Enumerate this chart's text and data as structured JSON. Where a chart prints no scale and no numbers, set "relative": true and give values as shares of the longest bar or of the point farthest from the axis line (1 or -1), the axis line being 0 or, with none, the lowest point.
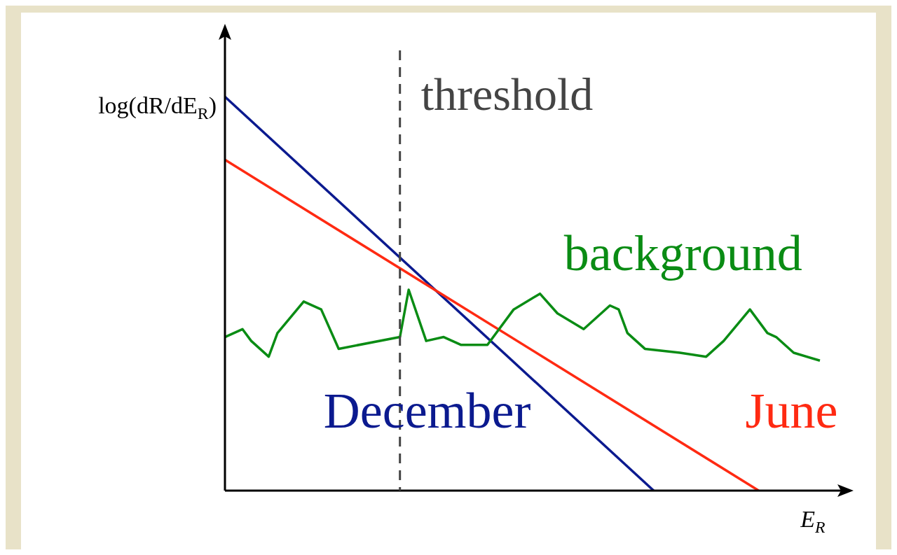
{
  "chart_data": {
    "type": "line",
    "relative": true,
    "ylabel": "log(dR/dE$_{R}$)",
    "xlabel": "E$_{R}$",
    "annotations": [
      "threshold"
    ],
    "grid": false,
    "legend": false,
    "marker": "none",
    "line_style": "solid",
    "categories": [
      null,
      null,
      null,
      null,
      null,
      null,
      null,
      null,
      null,
      null,
      null,
      null,
      null,
      null,
      null,
      null,
      null,
      null,
      null,
      null,
      null,
      null,
      null,
      null,
      null,
      null,
      null,
      null,
      null,
      null,
      null,
      null,
      null,
      null,
      null,
      null,
      null,
      null,
      null,
      null,
      null,
      null,
      null,
      null,
      null,
      null,
      null,
      null,
      null,
      null,
      null,
      null,
      null,
      null,
      null,
      null,
      null,
      null,
      null,
      null,
      null,
      null,
      null,
      null,
      null,
      null,
      null,
      null,
      null
    ],
    "series": [
      {
        "name": "December",
        "color": "#0b1a8f",
        "values": [
          1,
          null,
          null,
          null,
          null,
          null,
          null,
          null,
          null,
          null,
          null,
          null,
          null,
          null,
          null,
          null,
          null,
          null,
          null,
          null,
          null,
          null,
          null,
          null,
          null,
          null,
          null,
          null,
          null,
          null,
          null,
          null,
          null,
          null,
          null,
          null,
          null,
          null,
          null,
          null,
          null,
          null,
          null,
          null,
          null,
          null,
          null,
          null,
          null,
          0,
          null,
          null,
          null,
          null,
          null,
          null,
          null,
          null,
          null,
          null,
          null,
          null,
          null,
          null,
          null,
          null,
          null,
          null,
          null
        ]
      },
      {
        "name": "June",
        "color": "#ff2a12",
        "values": [
          0.84,
          null,
          null,
          null,
          null,
          null,
          null,
          null,
          null,
          null,
          null,
          null,
          null,
          null,
          null,
          null,
          null,
          null,
          null,
          null,
          null,
          null,
          null,
          null,
          null,
          null,
          null,
          null,
          null,
          null,
          null,
          null,
          null,
          null,
          null,
          null,
          null,
          null,
          null,
          null,
          null,
          null,
          null,
          null,
          null,
          null,
          null,
          null,
          null,
          null,
          null,
          null,
          null,
          null,
          null,
          null,
          null,
          null,
          null,
          null,
          null,
          0,
          null,
          null,
          null,
          null,
          null,
          null,
          null
        ]
      },
      {
        "name": "background",
        "color": "#0a8c14",
        "values": [
          0.39,
          null,
          0.41,
          0.38,
          null,
          0.34,
          0.4,
          null,
          null,
          0.48,
          null,
          0.46,
          null,
          0.36,
          null,
          null,
          null,
          null,
          null,
          null,
          0.39,
          0.51,
          null,
          0.38,
          null,
          0.39,
          null,
          0.37,
          null,
          null,
          0.37,
          null,
          null,
          0.46,
          null,
          null,
          0.5,
          null,
          0.45,
          null,
          null,
          0.41,
          null,
          null,
          0.47,
          0.46,
          0.4,
          null,
          0.36,
          null,
          null,
          null,
          0.35,
          null,
          null,
          0.34,
          null,
          0.38,
          null,
          null,
          0.46,
          null,
          0.4,
          0.39,
          null,
          0.35,
          null,
          null,
          0.33
        ]
      }
    ]
  }
}
